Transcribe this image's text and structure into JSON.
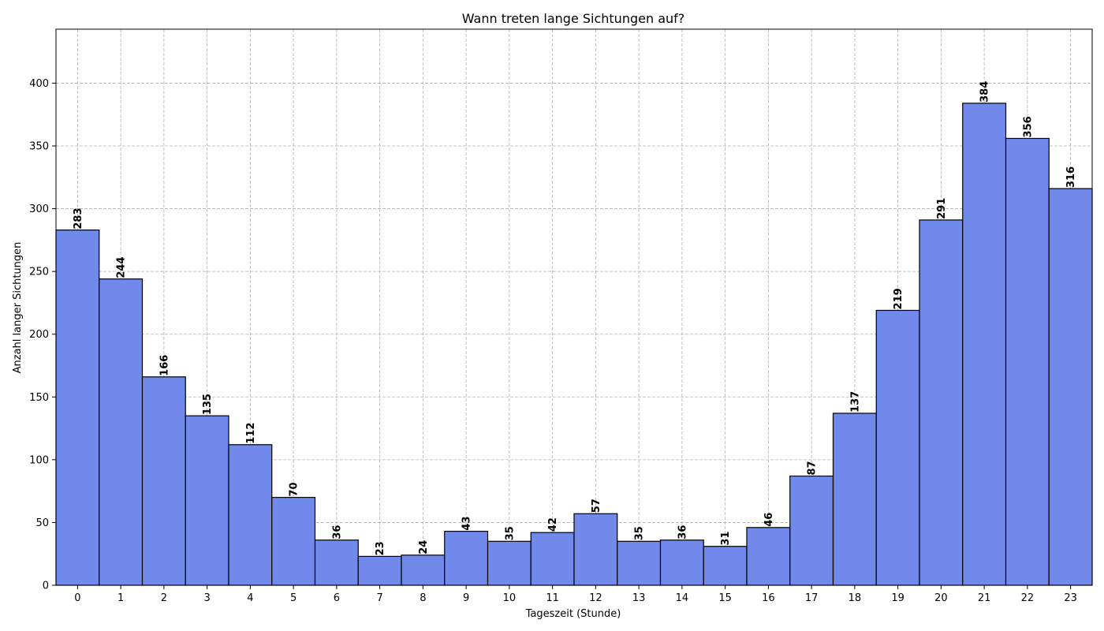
{
  "chart_data": {
    "type": "bar",
    "title": "Wann treten lange Sichtungen auf?",
    "xlabel": "Tageszeit (Stunde)",
    "ylabel": "Anzahl langer Sichtungen",
    "categories": [
      "0",
      "1",
      "2",
      "3",
      "4",
      "5",
      "6",
      "7",
      "8",
      "9",
      "10",
      "11",
      "12",
      "13",
      "14",
      "15",
      "16",
      "17",
      "18",
      "19",
      "20",
      "21",
      "22",
      "23"
    ],
    "values": [
      283,
      244,
      166,
      135,
      112,
      70,
      36,
      23,
      24,
      43,
      35,
      42,
      57,
      35,
      36,
      31,
      46,
      87,
      137,
      219,
      291,
      384,
      356,
      316
    ],
    "ylim": [
      0,
      443
    ],
    "yticks": [
      0,
      50,
      100,
      150,
      200,
      250,
      300,
      350,
      400
    ],
    "grid": true,
    "bar_color": "#7089EA",
    "edge_color": "#000000"
  }
}
